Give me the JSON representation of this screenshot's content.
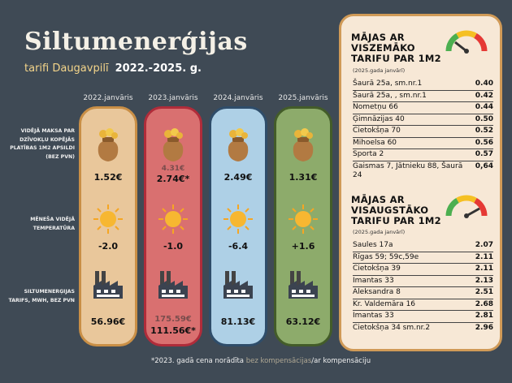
{
  "title": "Siltumenerģijas",
  "subtitle": "tarifi Daugavpilī",
  "years": "2022.-2025. g.",
  "columns": [
    {
      "label": "2022.janvāris",
      "price": "1.52€",
      "temp": "-2.0",
      "tariff": "56.96€"
    },
    {
      "label": "2023.janvāris",
      "price_faded": "4.31€",
      "price": "2.74€*",
      "temp": "-1.0",
      "tariff_faded": "175.59€",
      "tariff": "111.56€*"
    },
    {
      "label": "2024.janvāris",
      "price": "2.49€",
      "temp": "-6.4",
      "tariff": "81.13€"
    },
    {
      "label": "2025.janvāris",
      "price": "1.31€",
      "temp": "+1.6",
      "tariff": "63.12€"
    }
  ],
  "row_labels": {
    "price": "VIDĒJĀ MAKSA PAR DZĪVOKĻU KOPĒJĀS PLATĪBAS 1M2 APSILDI (BEZ PVN)",
    "temp": "MĒNEŠA VIDĒJĀ TEMPERATŪRA",
    "tariff": "SILTUMENERĢIJAS TARIFS, MWH, BEZ PVN"
  },
  "footnote": {
    "prefix": "*2023. gadā cena norādīta ",
    "hl": "bez kompensācijas",
    "suffix": "/ar kompensāciju"
  },
  "lowest": {
    "title_lines": [
      "MĀJAS AR",
      "VISZEMĀKO",
      "TARIFU PAR 1M2"
    ],
    "subtitle": "(2025.gada janvārī)",
    "items": [
      {
        "name": "Šaurā 25a, sm.nr.1",
        "price": "0.40"
      },
      {
        "name": "Šaurā 25a, , sm.nr.1",
        "price": "0.42"
      },
      {
        "name": "Nometņu 66",
        "price": "0.44"
      },
      {
        "name": "Ģimnāzijas 40",
        "price": "0.50"
      },
      {
        "name": "Cietokšņa 70",
        "price": "0.52"
      },
      {
        "name": "Mihoelsa 60",
        "price": "0.56"
      },
      {
        "name": "Sporta 2",
        "price": "0.57"
      },
      {
        "name": "Gaismas 7, Jātnieku 88, Šaurā 24",
        "price": "0,64"
      }
    ]
  },
  "highest": {
    "title_lines": [
      "MĀJAS AR",
      "VISAUGSTĀKO",
      "TARIFU PAR 1M2"
    ],
    "subtitle": "(2025.gada janvārī)",
    "items": [
      {
        "name": "Saules 17a",
        "price": "2.07"
      },
      {
        "name": "Rīgas 59; 59c,59e",
        "price": "2.11"
      },
      {
        "name": "Cietokšņa 39",
        "price": "2.11"
      },
      {
        "name": "Imantas 33",
        "price": "2.13"
      },
      {
        "name": "Aleksandra 8",
        "price": "2.51"
      },
      {
        "name": "Kr. Valdemāra 16",
        "price": "2.68"
      },
      {
        "name": "Imantas 33",
        "price": "2.81"
      },
      {
        "name": "Cietokšņa 34 sm.nr.2",
        "price": "2.96"
      }
    ]
  },
  "colors": {
    "bg": "#3f4a55",
    "col1": "#e9c79b",
    "col2": "#d97070",
    "col3": "#aed0e6",
    "col4": "#8dab6b",
    "panel": "#f7e8d6"
  },
  "icons": {
    "price": "money-bag-icon",
    "temp": "sun-icon",
    "tariff": "factory-icon",
    "gauge_low": "gauge-low-icon",
    "gauge_high": "gauge-high-icon"
  }
}
